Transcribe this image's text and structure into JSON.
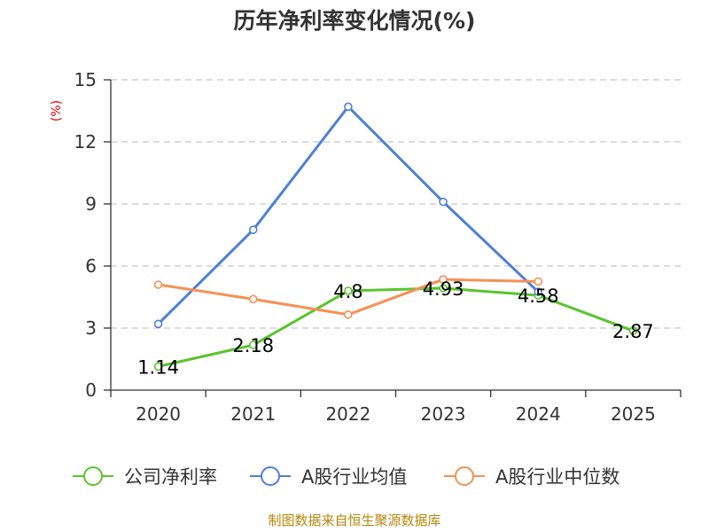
{
  "chart_data": {
    "type": "line",
    "title": "历年净利率变化情况(%)",
    "ylabel": "(%)",
    "xlabel": "",
    "categories": [
      "2020",
      "2021",
      "2022",
      "2023",
      "2024",
      "2025"
    ],
    "ylim": [
      0,
      15
    ],
    "yticks": [
      0,
      3,
      6,
      9,
      12,
      15
    ],
    "grid": true,
    "legend_position": "bottom",
    "series": [
      {
        "name": "公司净利率",
        "color": "#5ac42d",
        "values": [
          1.14,
          2.18,
          4.8,
          4.93,
          4.58,
          2.87
        ],
        "show_labels": true
      },
      {
        "name": "A股行业均值",
        "color": "#4f7fd9",
        "values": [
          3.2,
          7.75,
          13.7,
          9.1,
          4.75,
          null
        ],
        "show_labels": false
      },
      {
        "name": "A股行业中位数",
        "color": "#f59156",
        "values": [
          5.1,
          4.4,
          3.65,
          5.35,
          5.25,
          null
        ],
        "show_labels": false
      }
    ]
  },
  "source_text": "制图数据来自恒生聚源数据库"
}
